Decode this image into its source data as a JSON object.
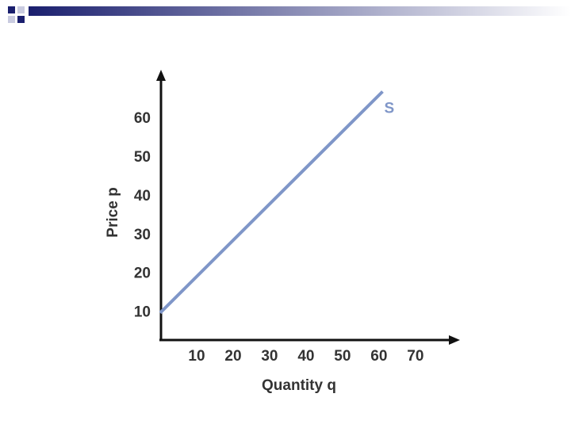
{
  "chart_data": {
    "type": "line",
    "x_label": "Quantity q",
    "y_label": "Price p",
    "x": [
      0,
      61
    ],
    "series": [
      {
        "name": "S",
        "color": "#7f96c8",
        "values": [
          10,
          67
        ]
      }
    ],
    "xlim": [
      0,
      82
    ],
    "ylim": [
      3,
      72
    ],
    "xticks": [
      10,
      20,
      30,
      40,
      50,
      60,
      70
    ],
    "yticks": [
      10,
      20,
      30,
      40,
      50,
      60
    ],
    "grid": false
  }
}
